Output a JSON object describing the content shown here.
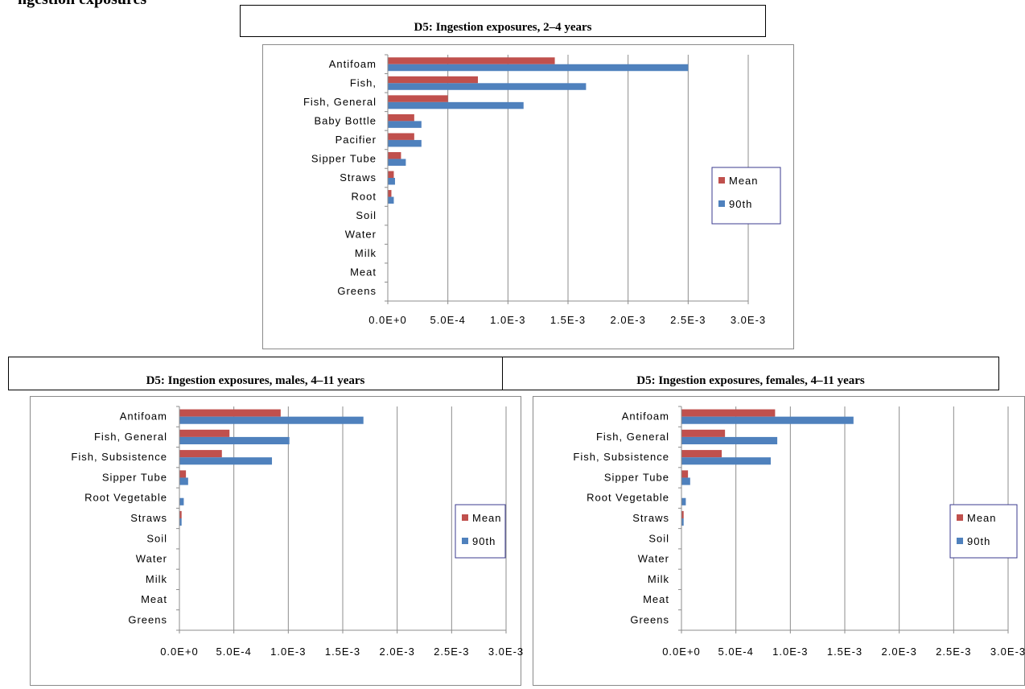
{
  "page": {
    "heading": "ngestion exposures"
  },
  "chart_data": [
    {
      "type": "bar",
      "orientation": "horizontal",
      "title": "D5: Ingestion exposures, 2–4 years",
      "categories": [
        "Antifoam",
        "Fish,",
        "Fish, General",
        "Baby Bottle",
        "Pacifier",
        "Sipper Tube",
        "Straws",
        "Root",
        "Soil",
        "Water",
        "Milk",
        "Meat",
        "Greens"
      ],
      "series": [
        {
          "name": "Mean",
          "color": "#c0504d",
          "values": [
            0.00139,
            0.00075,
            0.0005,
            0.00022,
            0.00022,
            0.00011,
            5e-05,
            3e-05,
            0,
            0,
            0,
            0,
            0
          ]
        },
        {
          "name": "90th",
          "color": "#4f81bd",
          "values": [
            0.0025,
            0.00165,
            0.00113,
            0.00028,
            0.00028,
            0.00015,
            6e-05,
            5e-05,
            0,
            0,
            0,
            0,
            0
          ]
        }
      ],
      "xlim": [
        0,
        0.003
      ],
      "ticks": [
        "0.0E+0",
        "5.0E-4",
        "1.0E-3",
        "1.5E-3",
        "2.0E-3",
        "2.5E-3",
        "3.0E-3"
      ],
      "grid": true,
      "legend": "right"
    },
    {
      "type": "bar",
      "orientation": "horizontal",
      "title": "D5: Ingestion exposures, males, 4–11 years",
      "categories": [
        "Antifoam",
        "Fish, General",
        "Fish, Subsistence",
        "Sipper Tube",
        "Root Vegetable",
        "Straws",
        "Soil",
        "Water",
        "Milk",
        "Meat",
        "Greens"
      ],
      "series": [
        {
          "name": "Mean",
          "color": "#c0504d",
          "values": [
            0.00093,
            0.00046,
            0.00039,
            6e-05,
            0,
            2e-05,
            0,
            0,
            0,
            0,
            0
          ]
        },
        {
          "name": "90th",
          "color": "#4f81bd",
          "values": [
            0.00169,
            0.00101,
            0.00085,
            8e-05,
            4e-05,
            2e-05,
            0,
            0,
            0,
            0,
            0
          ]
        }
      ],
      "xlim": [
        0,
        0.003
      ],
      "ticks": [
        "0.0E+0",
        "5.0E-4",
        "1.0E-3",
        "1.5E-3",
        "2.0E-3",
        "2.5E-3",
        "3.0E-3"
      ],
      "grid": true,
      "legend": "right"
    },
    {
      "type": "bar",
      "orientation": "horizontal",
      "title": "D5: Ingestion exposures, females, 4–11 years",
      "categories": [
        "Antifoam",
        "Fish, General",
        "Fish, Subsistence",
        "Sipper Tube",
        "Root Vegetable",
        "Straws",
        "Soil",
        "Water",
        "Milk",
        "Meat",
        "Greens"
      ],
      "series": [
        {
          "name": "Mean",
          "color": "#c0504d",
          "values": [
            0.00086,
            0.0004,
            0.00037,
            6e-05,
            0,
            2e-05,
            0,
            0,
            0,
            0,
            0
          ]
        },
        {
          "name": "90th",
          "color": "#4f81bd",
          "values": [
            0.00158,
            0.00088,
            0.00082,
            8e-05,
            4e-05,
            2e-05,
            0,
            0,
            0,
            0,
            0
          ]
        }
      ],
      "xlim": [
        0,
        0.003
      ],
      "ticks": [
        "0.0E+0",
        "5.0E-4",
        "1.0E-3",
        "1.5E-3",
        "2.0E-3",
        "2.5E-3",
        "3.0E-3"
      ],
      "grid": true,
      "legend": "right"
    }
  ]
}
